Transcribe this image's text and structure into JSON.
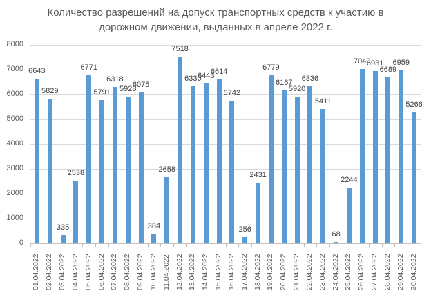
{
  "chart_data": {
    "type": "bar",
    "title": "Количество разрешений на допуск транспортных средств к участию в дорожном движении, выданных в апреле 2022 г.",
    "title_lines": [
      "Количество разрешений на допуск транспортных средств к участию в",
      "дорожном движении, выданных в апреле 2022 г."
    ],
    "xlabel": "",
    "ylabel": "",
    "ylim": [
      0,
      8000
    ],
    "yticks": [
      "0",
      "1000",
      "2000",
      "3000",
      "4000",
      "5000",
      "6000",
      "7000",
      "8000"
    ],
    "grid": true,
    "legend": null,
    "bar_color": "#5b9bd5",
    "categories": [
      "01.04.2022",
      "02.04.2022",
      "03.04.2022",
      "04.04.2022",
      "05.04.2022",
      "06.04.2022",
      "07.04.2022",
      "08.04.2022",
      "09.04.2022",
      "10.04.2022",
      "11.04.2022",
      "12.04.2022",
      "13.04.2022",
      "14.04.2022",
      "15.04.2022",
      "16.04.2022",
      "17.04.2022",
      "18.04.2022",
      "19.04.2022",
      "20.04.2022",
      "21.04.2022",
      "22.04.2022",
      "23.04.2022",
      "24.04.2022",
      "25.04.2022",
      "26.04.2022",
      "27.04.2022",
      "28.04.2022",
      "29.04.2022",
      "30.04.2022"
    ],
    "values": [
      6643,
      5829,
      335,
      2538,
      6771,
      5791,
      6318,
      5928,
      6075,
      384,
      2658,
      7518,
      6330,
      6443,
      6614,
      5742,
      256,
      2431,
      6779,
      6167,
      5920,
      6336,
      5411,
      68,
      2244,
      7040,
      6931,
      6689,
      6959,
      5266
    ],
    "data_labels": [
      "6643",
      "5829",
      "335",
      "2538",
      "6771",
      "5791",
      "6318",
      "5928",
      "6075",
      "384",
      "2658",
      "7518",
      "6330",
      "6443",
      "6614",
      "5742",
      "256",
      "2431",
      "6779",
      "6167",
      "5920",
      "6336",
      "5411",
      "68",
      "2244",
      "7040",
      "6931",
      "6689",
      "6959",
      "5266"
    ]
  }
}
